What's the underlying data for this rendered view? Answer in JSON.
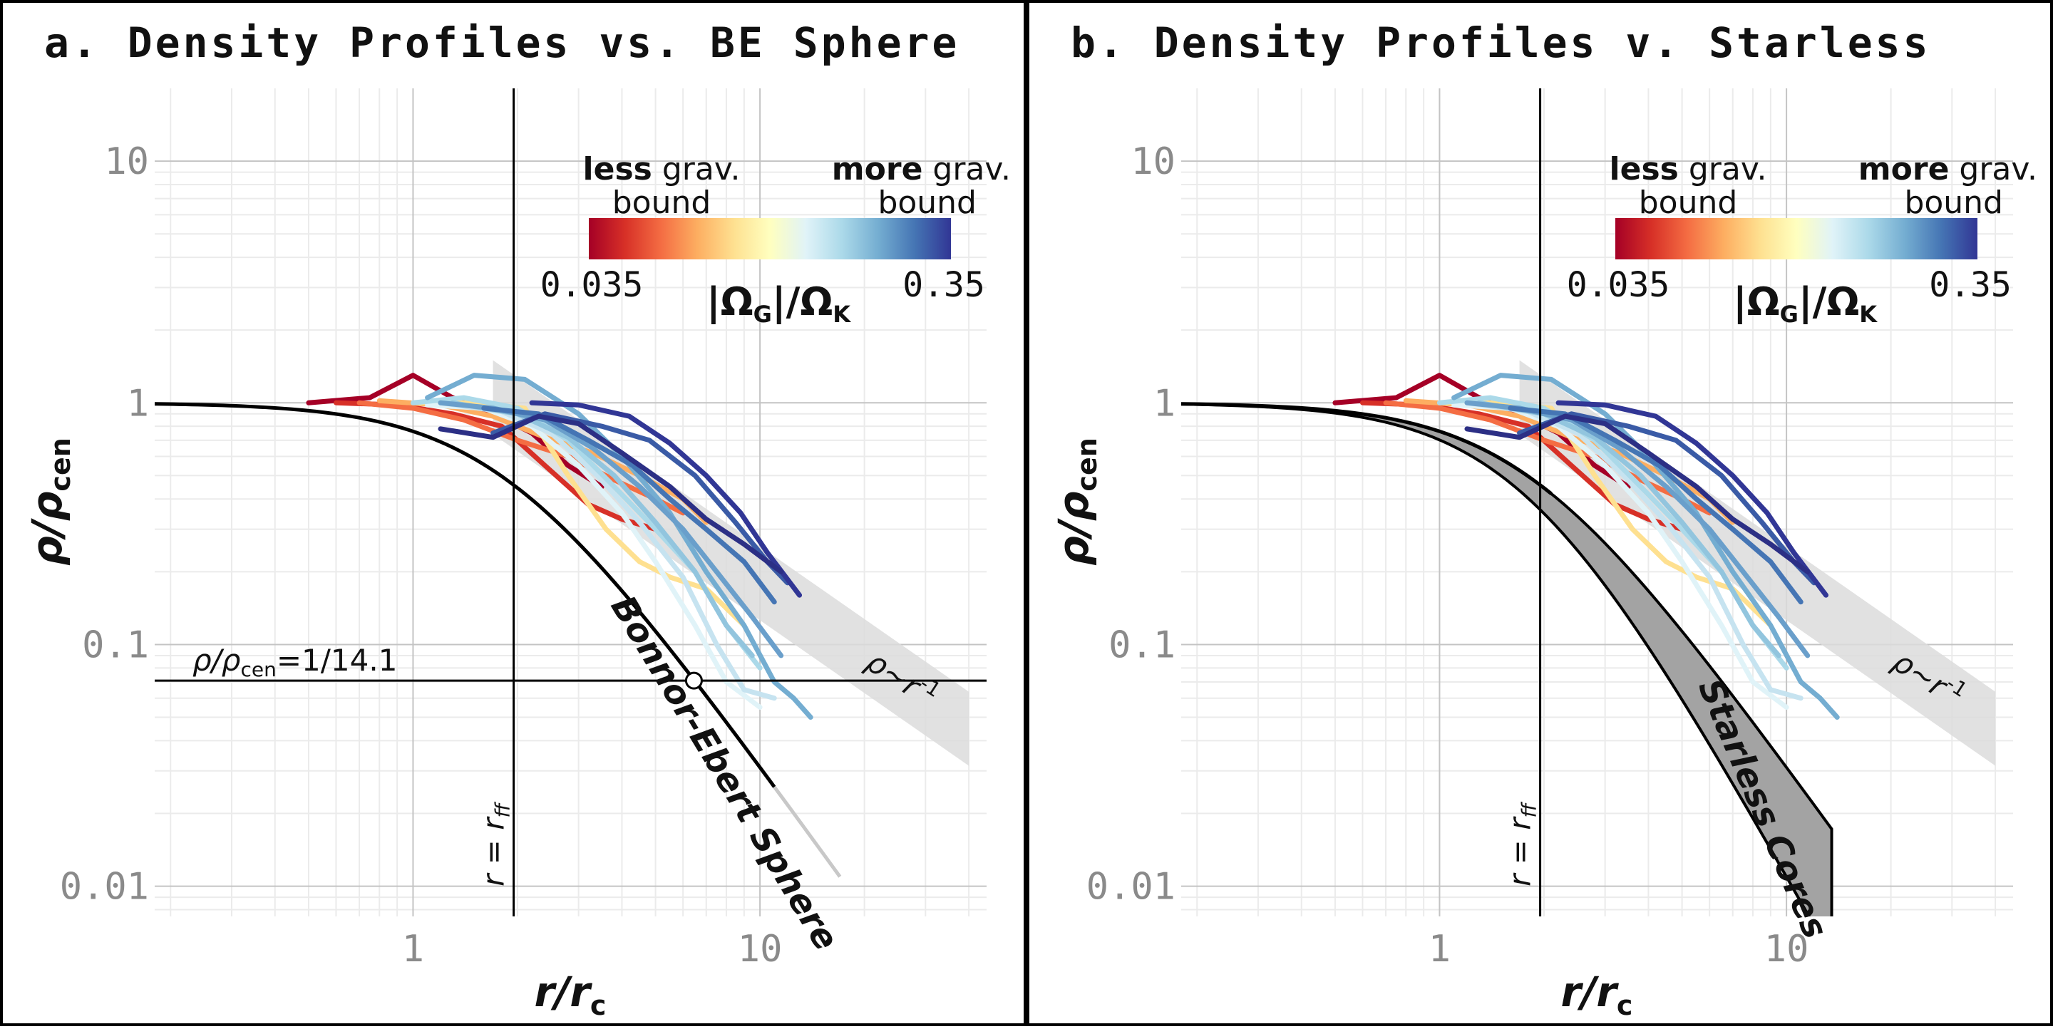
{
  "chart_data": [
    {
      "panel_id": "a",
      "type": "line",
      "title": "a. Density Profiles vs. BE Sphere",
      "xlabel_main": "r/r",
      "xlabel_sub": "c",
      "ylabel_main": "ρ/ρ",
      "ylabel_sub": "cen",
      "xscale": "log",
      "yscale": "log",
      "xlim": [
        0.18,
        45
      ],
      "ylim": [
        0.0075,
        20
      ],
      "x_ticks": [
        {
          "value": 1,
          "label": "1"
        },
        {
          "value": 10,
          "label": "10"
        }
      ],
      "y_ticks": [
        {
          "value": 10,
          "label": "10"
        },
        {
          "value": 1,
          "label": "1"
        },
        {
          "value": 0.1,
          "label": "0.1"
        },
        {
          "value": 0.01,
          "label": "0.01"
        }
      ],
      "rff_line": {
        "x": 1.95,
        "label_main": "r = r",
        "label_sub": "ff"
      },
      "colorbar": {
        "left_head_bold": "less",
        "left_head_rest": " grav.",
        "left_head_line2": "bound",
        "right_head_bold": "more",
        "right_head_rest": " grav.",
        "right_head_line2": "bound",
        "min_label": "0.035",
        "max_label": "0.35",
        "label": "|Ω",
        "label_sub1": "G",
        "label_mid": "|/Ω",
        "label_sub2": "K",
        "colors": [
          "#a50026",
          "#d73027",
          "#f46d43",
          "#fdae61",
          "#fee090",
          "#ffffbf",
          "#e0f3f8",
          "#abd9e9",
          "#74add1",
          "#4575b4",
          "#313695"
        ]
      },
      "power_law_band": {
        "label_main": "ρ~r",
        "label_exp": "-1",
        "slope": -1,
        "upper_at_x3": 0.85,
        "lower_at_x3": 0.42,
        "x_range": [
          1.7,
          40
        ]
      },
      "reference_curve": {
        "name": "Bonnor-Ebert Sphere",
        "style": "black line",
        "x_max": 11,
        "faded_tail_to": 17
      },
      "hline": {
        "y": 0.0709,
        "label_main": "ρ/ρ",
        "label_sub": "cen",
        "label_rest": "=1/14.1",
        "marker_x": 6.45
      },
      "series": [
        {
          "color": "#a50026",
          "x": [
            0.5,
            0.75,
            1.0,
            1.3,
            1.7,
            2.2,
            2.8,
            3.5
          ],
          "y": [
            1.0,
            1.05,
            1.3,
            1.05,
            0.9,
            0.75,
            0.55,
            0.45
          ]
        },
        {
          "color": "#d73027",
          "x": [
            0.6,
            0.9,
            1.3,
            1.8,
            2.4,
            3.2,
            4.0,
            5.0
          ],
          "y": [
            1.0,
            0.98,
            0.9,
            0.8,
            0.55,
            0.38,
            0.33,
            0.3
          ]
        },
        {
          "color": "#f46d43",
          "x": [
            0.7,
            1.0,
            1.4,
            2.0,
            2.8,
            3.8,
            5.0,
            6.0
          ],
          "y": [
            1.0,
            0.95,
            0.85,
            0.7,
            0.6,
            0.48,
            0.4,
            0.35
          ]
        },
        {
          "color": "#fdae61",
          "x": [
            0.8,
            1.2,
            1.7,
            2.4,
            3.3,
            4.5,
            6.0,
            7.0
          ],
          "y": [
            1.02,
            0.98,
            0.88,
            0.72,
            0.62,
            0.5,
            0.4,
            0.32
          ]
        },
        {
          "color": "#fee090",
          "x": [
            1.0,
            1.5,
            2.1,
            2.8,
            3.6,
            4.5,
            5.5,
            7.0,
            9.0
          ],
          "y": [
            1.0,
            1.0,
            0.95,
            0.5,
            0.3,
            0.22,
            0.19,
            0.17,
            0.12
          ]
        },
        {
          "color": "#e0f3f8",
          "x": [
            1.1,
            1.6,
            2.2,
            3.0,
            4.0,
            5.0,
            6.5,
            8.0,
            10.0
          ],
          "y": [
            0.98,
            0.95,
            0.8,
            0.55,
            0.35,
            0.22,
            0.12,
            0.07,
            0.055
          ]
        },
        {
          "color": "#c6e3f0",
          "x": [
            1.2,
            1.8,
            2.5,
            3.4,
            4.5,
            6.0,
            7.5,
            9.0,
            11.0
          ],
          "y": [
            1.0,
            0.92,
            0.75,
            0.5,
            0.32,
            0.19,
            0.1,
            0.065,
            0.06
          ]
        },
        {
          "color": "#abd9e9",
          "x": [
            1.0,
            1.4,
            2.0,
            2.8,
            3.8,
            5.0,
            6.5,
            8.0,
            10.0
          ],
          "y": [
            1.0,
            1.05,
            0.95,
            0.7,
            0.45,
            0.3,
            0.2,
            0.12,
            0.08
          ]
        },
        {
          "color": "#92c5de",
          "x": [
            1.3,
            2.0,
            2.8,
            3.8,
            5.0,
            6.5,
            8.0,
            9.5
          ],
          "y": [
            1.0,
            0.9,
            0.72,
            0.5,
            0.32,
            0.2,
            0.12,
            0.09
          ]
        },
        {
          "color": "#74add1",
          "x": [
            1.1,
            1.5,
            2.1,
            3.0,
            4.0,
            5.5,
            7.0,
            9.0,
            11.0,
            12.5,
            14.0
          ],
          "y": [
            1.05,
            1.3,
            1.25,
            0.9,
            0.6,
            0.35,
            0.2,
            0.12,
            0.07,
            0.06,
            0.05
          ]
        },
        {
          "color": "#6a9fcb",
          "x": [
            1.2,
            1.7,
            2.4,
            3.3,
            4.5,
            6.0,
            7.5,
            9.5,
            11.5
          ],
          "y": [
            1.0,
            0.95,
            0.85,
            0.65,
            0.45,
            0.3,
            0.2,
            0.13,
            0.09
          ]
        },
        {
          "color": "#4575b4",
          "x": [
            1.6,
            2.3,
            3.2,
            4.3,
            5.5,
            7.0,
            9.0,
            11.0
          ],
          "y": [
            0.95,
            0.9,
            0.7,
            0.55,
            0.4,
            0.3,
            0.22,
            0.15
          ]
        },
        {
          "color": "#3a5ba6",
          "x": [
            1.7,
            2.4,
            3.5,
            4.8,
            6.5,
            8.5,
            10.5,
            12.0
          ],
          "y": [
            0.75,
            0.9,
            0.8,
            0.7,
            0.5,
            0.32,
            0.22,
            0.18
          ]
        },
        {
          "color": "#313695",
          "x": [
            2.2,
            3.0,
            4.2,
            5.5,
            7.0,
            8.8,
            10.5,
            13.0
          ],
          "y": [
            1.0,
            0.98,
            0.88,
            0.68,
            0.5,
            0.35,
            0.24,
            0.16
          ]
        },
        {
          "color": "#2c2f85",
          "x": [
            1.2,
            1.7,
            2.3,
            3.0,
            4.0,
            5.5,
            7.0,
            9.0,
            11.5
          ],
          "y": [
            0.78,
            0.72,
            0.88,
            0.82,
            0.62,
            0.45,
            0.33,
            0.26,
            0.2
          ]
        }
      ]
    },
    {
      "panel_id": "b",
      "type": "line",
      "title": "b. Density Profiles v. Starless",
      "xlabel_main": "r/r",
      "xlabel_sub": "c",
      "ylabel_main": "ρ/ρ",
      "ylabel_sub": "cen",
      "xscale": "log",
      "yscale": "log",
      "xlim": [
        0.18,
        45
      ],
      "ylim": [
        0.0075,
        20
      ],
      "x_ticks": [
        {
          "value": 1,
          "label": "1"
        },
        {
          "value": 10,
          "label": "10"
        }
      ],
      "y_ticks": [
        {
          "value": 10,
          "label": "10"
        },
        {
          "value": 1,
          "label": "1"
        },
        {
          "value": 0.1,
          "label": "0.1"
        },
        {
          "value": 0.01,
          "label": "0.01"
        }
      ],
      "rff_line": {
        "x": 1.95,
        "label_main": "r = r",
        "label_sub": "ff"
      },
      "colorbar": {
        "left_head_bold": "less",
        "left_head_rest": " grav.",
        "left_head_line2": "bound",
        "right_head_bold": "more",
        "right_head_rest": " grav.",
        "right_head_line2": "bound",
        "min_label": "0.035",
        "max_label": "0.35",
        "label": "|Ω",
        "label_sub1": "G",
        "label_mid": "|/Ω",
        "label_sub2": "K",
        "colors": [
          "#a50026",
          "#d73027",
          "#f46d43",
          "#fdae61",
          "#fee090",
          "#ffffbf",
          "#e0f3f8",
          "#abd9e9",
          "#74add1",
          "#4575b4",
          "#313695"
        ]
      },
      "power_law_band": {
        "label_main": "ρ~r",
        "label_exp": "-1",
        "slope": -1,
        "upper_at_x3": 0.85,
        "lower_at_x3": 0.42,
        "x_range": [
          1.7,
          40
        ]
      },
      "starless_band": {
        "name": "Starless Cores",
        "x_max": 13.5,
        "upper_index": 2.0,
        "lower_index": 2.6
      },
      "series": [
        {
          "color": "#a50026",
          "x": [
            0.5,
            0.75,
            1.0,
            1.3,
            1.7,
            2.2,
            2.8,
            3.5
          ],
          "y": [
            1.0,
            1.05,
            1.3,
            1.05,
            0.9,
            0.75,
            0.55,
            0.45
          ]
        },
        {
          "color": "#d73027",
          "x": [
            0.6,
            0.9,
            1.3,
            1.8,
            2.4,
            3.2,
            4.0,
            5.0
          ],
          "y": [
            1.0,
            0.98,
            0.9,
            0.8,
            0.55,
            0.38,
            0.33,
            0.3
          ]
        },
        {
          "color": "#f46d43",
          "x": [
            0.7,
            1.0,
            1.4,
            2.0,
            2.8,
            3.8,
            5.0,
            6.0
          ],
          "y": [
            1.0,
            0.95,
            0.85,
            0.7,
            0.6,
            0.48,
            0.4,
            0.35
          ]
        },
        {
          "color": "#fdae61",
          "x": [
            0.8,
            1.2,
            1.7,
            2.4,
            3.3,
            4.5,
            6.0,
            7.0
          ],
          "y": [
            1.02,
            0.98,
            0.88,
            0.72,
            0.62,
            0.5,
            0.4,
            0.32
          ]
        },
        {
          "color": "#fee090",
          "x": [
            1.0,
            1.5,
            2.1,
            2.8,
            3.6,
            4.5,
            5.5,
            7.0,
            9.0
          ],
          "y": [
            1.0,
            1.0,
            0.95,
            0.5,
            0.3,
            0.22,
            0.19,
            0.17,
            0.12
          ]
        },
        {
          "color": "#e0f3f8",
          "x": [
            1.1,
            1.6,
            2.2,
            3.0,
            4.0,
            5.0,
            6.5,
            8.0,
            10.0
          ],
          "y": [
            0.98,
            0.95,
            0.8,
            0.55,
            0.35,
            0.22,
            0.12,
            0.07,
            0.055
          ]
        },
        {
          "color": "#c6e3f0",
          "x": [
            1.2,
            1.8,
            2.5,
            3.4,
            4.5,
            6.0,
            7.5,
            9.0,
            11.0
          ],
          "y": [
            1.0,
            0.92,
            0.75,
            0.5,
            0.32,
            0.19,
            0.1,
            0.065,
            0.06
          ]
        },
        {
          "color": "#abd9e9",
          "x": [
            1.0,
            1.4,
            2.0,
            2.8,
            3.8,
            5.0,
            6.5,
            8.0,
            10.0
          ],
          "y": [
            1.0,
            1.05,
            0.95,
            0.7,
            0.45,
            0.3,
            0.2,
            0.12,
            0.08
          ]
        },
        {
          "color": "#92c5de",
          "x": [
            1.3,
            2.0,
            2.8,
            3.8,
            5.0,
            6.5,
            8.0,
            9.5
          ],
          "y": [
            1.0,
            0.9,
            0.72,
            0.5,
            0.32,
            0.2,
            0.12,
            0.09
          ]
        },
        {
          "color": "#74add1",
          "x": [
            1.1,
            1.5,
            2.1,
            3.0,
            4.0,
            5.5,
            7.0,
            9.0,
            11.0,
            12.5,
            14.0
          ],
          "y": [
            1.05,
            1.3,
            1.25,
            0.9,
            0.6,
            0.35,
            0.2,
            0.12,
            0.07,
            0.06,
            0.05
          ]
        },
        {
          "color": "#6a9fcb",
          "x": [
            1.2,
            1.7,
            2.4,
            3.3,
            4.5,
            6.0,
            7.5,
            9.5,
            11.5
          ],
          "y": [
            1.0,
            0.95,
            0.85,
            0.65,
            0.45,
            0.3,
            0.2,
            0.13,
            0.09
          ]
        },
        {
          "color": "#4575b4",
          "x": [
            1.6,
            2.3,
            3.2,
            4.3,
            5.5,
            7.0,
            9.0,
            11.0
          ],
          "y": [
            0.95,
            0.9,
            0.7,
            0.55,
            0.4,
            0.3,
            0.22,
            0.15
          ]
        },
        {
          "color": "#3a5ba6",
          "x": [
            1.7,
            2.4,
            3.5,
            4.8,
            6.5,
            8.5,
            10.5,
            12.0
          ],
          "y": [
            0.75,
            0.9,
            0.8,
            0.7,
            0.5,
            0.32,
            0.22,
            0.18
          ]
        },
        {
          "color": "#313695",
          "x": [
            2.2,
            3.0,
            4.2,
            5.5,
            7.0,
            8.8,
            10.5,
            13.0
          ],
          "y": [
            1.0,
            0.98,
            0.88,
            0.68,
            0.5,
            0.35,
            0.24,
            0.16
          ]
        },
        {
          "color": "#2c2f85",
          "x": [
            1.2,
            1.7,
            2.3,
            3.0,
            4.0,
            5.5,
            7.0,
            9.0,
            11.5
          ],
          "y": [
            0.78,
            0.72,
            0.88,
            0.82,
            0.62,
            0.45,
            0.33,
            0.26,
            0.2
          ]
        }
      ]
    }
  ]
}
